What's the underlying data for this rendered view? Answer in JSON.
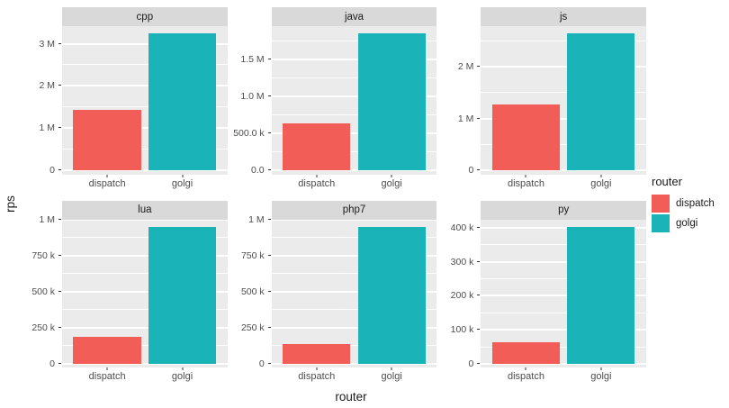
{
  "figure": {
    "y_axis_title": "rps",
    "x_axis_title": "router"
  },
  "legend": {
    "title": "router",
    "entries": [
      {
        "name": "dispatch",
        "label": "dispatch",
        "color": "#F25D58"
      },
      {
        "name": "golgi",
        "label": "golgi",
        "color": "#1AB3B7"
      }
    ]
  },
  "colors": {
    "panel_bg": "#EBEBEB",
    "strip_bg": "#D9D9D9",
    "gridline": "#FFFFFF",
    "tick_text": "#4D4D4D",
    "dispatch_bar": "#F25D58",
    "golgi_bar": "#1AB3B7"
  },
  "chart_data": {
    "type": "bar",
    "layout": "facet_wrap 2 rows x 3 cols, free y scales, legend right",
    "title": "",
    "xlabel": "router",
    "ylabel": "rps",
    "categories": [
      "dispatch",
      "golgi"
    ],
    "series_colors": {
      "dispatch": "#F25D58",
      "golgi": "#1AB3B7"
    },
    "facets": [
      {
        "title": "cpp",
        "values": {
          "dispatch": 1430000,
          "golgi": 3240000
        },
        "yticks": [
          {
            "value": 0,
            "label": "0"
          },
          {
            "value": 1000000,
            "label": "1 M"
          },
          {
            "value": 2000000,
            "label": "2 M"
          },
          {
            "value": 3000000,
            "label": "3 M"
          }
        ]
      },
      {
        "title": "java",
        "values": {
          "dispatch": 640000,
          "golgi": 1850000
        },
        "yticks": [
          {
            "value": 0,
            "label": "0.0"
          },
          {
            "value": 500000,
            "label": "500.0 k"
          },
          {
            "value": 1000000,
            "label": "1.0 M"
          },
          {
            "value": 1500000,
            "label": "1.5 M"
          }
        ]
      },
      {
        "title": "js",
        "values": {
          "dispatch": 1280000,
          "golgi": 2640000
        },
        "yticks": [
          {
            "value": 0,
            "label": "0"
          },
          {
            "value": 1000000,
            "label": "1 M"
          },
          {
            "value": 2000000,
            "label": "2 M"
          }
        ]
      },
      {
        "title": "lua",
        "values": {
          "dispatch": 185000,
          "golgi": 950000
        },
        "yticks": [
          {
            "value": 0,
            "label": "0"
          },
          {
            "value": 250000,
            "label": "250 k"
          },
          {
            "value": 500000,
            "label": "500 k"
          },
          {
            "value": 750000,
            "label": "750 k"
          },
          {
            "value": 1000000,
            "label": "1 M"
          }
        ]
      },
      {
        "title": "php7",
        "values": {
          "dispatch": 138000,
          "golgi": 950000
        },
        "yticks": [
          {
            "value": 0,
            "label": "0"
          },
          {
            "value": 250000,
            "label": "250 k"
          },
          {
            "value": 500000,
            "label": "500 k"
          },
          {
            "value": 750000,
            "label": "750 k"
          },
          {
            "value": 1000000,
            "label": "1 M"
          }
        ]
      },
      {
        "title": "py",
        "values": {
          "dispatch": 63000,
          "golgi": 403000
        },
        "yticks": [
          {
            "value": 0,
            "label": "0"
          },
          {
            "value": 100000,
            "label": "100 k"
          },
          {
            "value": 200000,
            "label": "200 k"
          },
          {
            "value": 300000,
            "label": "300 k"
          },
          {
            "value": 400000,
            "label": "400 k"
          }
        ]
      }
    ]
  }
}
